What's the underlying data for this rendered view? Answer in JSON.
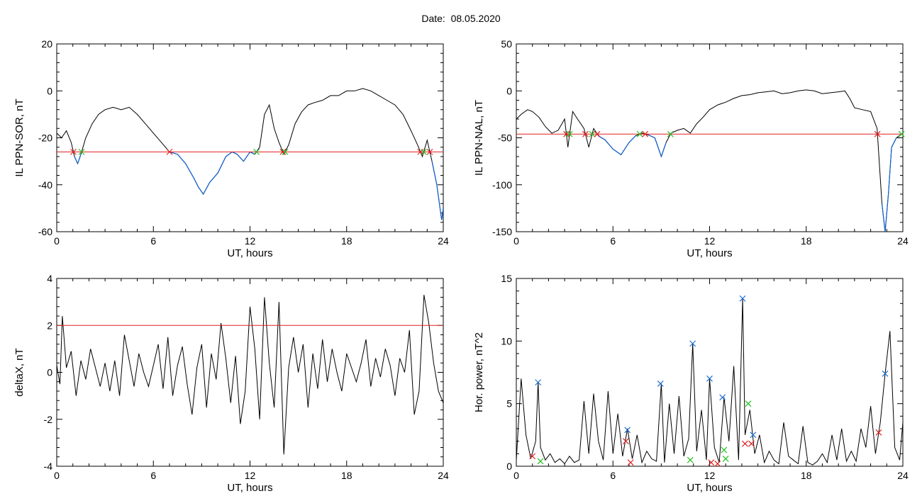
{
  "figure": {
    "date_label": "Date:",
    "date_value": "08.05.2020"
  },
  "colors": {
    "baseline": "#000000",
    "disturbed": "#1060d0",
    "threshold": "#e02020",
    "marker_red": "#e02020",
    "marker_green": "#20c020",
    "marker_blue": "#2070d0"
  },
  "chart_data": [
    {
      "id": "sor",
      "type": "line",
      "title": "",
      "xlabel": "UT, hours",
      "ylabel": "IL PPN-SOR, nT",
      "xlim": [
        0,
        24
      ],
      "ylim": [
        -60,
        20
      ],
      "xticks": [
        0,
        6,
        12,
        18,
        24
      ],
      "yticks": [
        -60,
        -40,
        -20,
        0,
        20
      ],
      "threshold": -26,
      "series": [
        {
          "x": [
            0,
            0.3,
            0.6,
            0.9,
            1.1,
            1.3,
            1.5,
            1.8,
            2.2,
            2.6,
            3.0,
            3.5,
            4.0,
            4.5,
            5.0,
            5.5,
            6.0,
            6.5,
            7.0,
            7.5,
            8.0,
            8.5,
            8.8,
            9.1,
            9.5,
            10.0,
            10.5,
            10.9,
            11.2,
            11.6,
            12.0,
            12.3,
            12.6,
            12.9,
            13.2,
            13.5,
            13.8,
            14.1,
            14.4,
            14.8,
            15.2,
            15.6,
            16.0,
            16.5,
            17.0,
            17.5,
            18.0,
            18.5,
            19.0,
            19.5,
            20.0,
            20.5,
            21.0,
            21.5,
            22.0,
            22.4,
            22.7,
            23.0,
            23.3,
            23.6,
            23.9,
            24.0
          ],
          "y": [
            -18,
            -20,
            -17,
            -22,
            -28,
            -31,
            -27,
            -20,
            -14,
            -10,
            -8,
            -7,
            -8,
            -7,
            -10,
            -14,
            -18,
            -22,
            -26,
            -27,
            -31,
            -37,
            -41,
            -44,
            -39,
            -35,
            -28,
            -26,
            -27,
            -30,
            -26,
            -27,
            -24,
            -10,
            -6,
            -16,
            -22,
            -27,
            -23,
            -14,
            -9,
            -6,
            -5,
            -4,
            -2,
            -2,
            0,
            0,
            1,
            0,
            -2,
            -4,
            -6,
            -10,
            -17,
            -23,
            -28,
            -21,
            -30,
            -40,
            -55,
            -50
          ]
        }
      ]
    },
    {
      "id": "nal",
      "type": "line",
      "title": "",
      "xlabel": "UT, hours",
      "ylabel": "IL PPN-NAL, nT",
      "xlim": [
        0,
        24
      ],
      "ylim": [
        -150,
        50
      ],
      "xticks": [
        0,
        6,
        12,
        18,
        24
      ],
      "yticks": [
        -150,
        -100,
        -50,
        0,
        50
      ],
      "threshold": -46,
      "series": [
        {
          "x": [
            0,
            0.3,
            0.7,
            1.0,
            1.4,
            1.8,
            2.2,
            2.6,
            3.0,
            3.2,
            3.5,
            3.8,
            4.2,
            4.5,
            4.8,
            5.1,
            5.5,
            6.0,
            6.5,
            7.0,
            7.4,
            7.8,
            8.2,
            8.6,
            9.0,
            9.3,
            9.6,
            10.0,
            10.4,
            10.8,
            11.2,
            11.6,
            12.0,
            12.5,
            13.0,
            13.5,
            14.0,
            14.5,
            15.0,
            15.5,
            16.0,
            16.5,
            17.0,
            17.5,
            18.0,
            18.5,
            19.0,
            19.5,
            20.0,
            20.4,
            20.7,
            21.0,
            21.5,
            22.0,
            22.4,
            22.7,
            22.9,
            23.1,
            23.3,
            23.6,
            24.0
          ],
          "y": [
            -30,
            -25,
            -20,
            -22,
            -28,
            -38,
            -45,
            -42,
            -30,
            -60,
            -22,
            -30,
            -40,
            -60,
            -40,
            -48,
            -52,
            -62,
            -68,
            -55,
            -48,
            -45,
            -47,
            -50,
            -70,
            -55,
            -45,
            -42,
            -40,
            -45,
            -35,
            -28,
            -20,
            -15,
            -12,
            -8,
            -5,
            -4,
            -2,
            -1,
            0,
            -3,
            -2,
            0,
            1,
            0,
            -3,
            -2,
            -1,
            0,
            -8,
            -18,
            -20,
            -22,
            -40,
            -120,
            -150,
            -110,
            -60,
            -50,
            -45
          ]
        }
      ]
    },
    {
      "id": "deltax",
      "type": "line",
      "title": "",
      "xlabel": "UT, hours",
      "ylabel": "deltaX, nT",
      "xlim": [
        0,
        24
      ],
      "ylim": [
        -4,
        4
      ],
      "xticks": [
        0,
        6,
        12,
        18,
        24
      ],
      "yticks": [
        -4,
        -2,
        0,
        2,
        4
      ],
      "threshold": 2,
      "series": [
        {
          "x": [
            0,
            0.2,
            0.35,
            0.6,
            0.9,
            1.2,
            1.5,
            1.8,
            2.1,
            2.4,
            2.7,
            3.0,
            3.3,
            3.6,
            3.9,
            4.2,
            4.5,
            4.8,
            5.1,
            5.4,
            5.7,
            6.0,
            6.3,
            6.6,
            6.9,
            7.2,
            7.5,
            7.8,
            8.1,
            8.4,
            8.7,
            9.0,
            9.3,
            9.6,
            9.9,
            10.2,
            10.5,
            10.8,
            11.1,
            11.4,
            11.7,
            12.0,
            12.3,
            12.6,
            12.9,
            13.2,
            13.5,
            13.8,
            14.1,
            14.4,
            14.7,
            15.0,
            15.3,
            15.6,
            15.9,
            16.2,
            16.5,
            16.8,
            17.1,
            17.4,
            17.7,
            18.0,
            18.3,
            18.6,
            18.9,
            19.2,
            19.5,
            19.8,
            20.1,
            20.4,
            20.7,
            21.0,
            21.3,
            21.6,
            21.9,
            22.2,
            22.5,
            22.8,
            23.1,
            23.4,
            23.7,
            24.0
          ],
          "y": [
            0.3,
            -0.5,
            2.4,
            0.2,
            0.9,
            -1.0,
            0.5,
            -0.3,
            1.0,
            0.2,
            -0.6,
            0.4,
            -0.8,
            0.5,
            -1.0,
            1.6,
            0.5,
            -0.6,
            0.8,
            0.0,
            -0.6,
            0.3,
            1.2,
            -0.7,
            1.5,
            -1.0,
            0.3,
            1.1,
            -0.5,
            -1.8,
            0.2,
            1.2,
            -1.5,
            0.8,
            -0.3,
            2.1,
            0.6,
            -1.3,
            0.7,
            -2.2,
            -0.8,
            2.8,
            1.0,
            -2.0,
            3.2,
            0.4,
            -1.5,
            3.0,
            -3.5,
            0.2,
            1.5,
            0.0,
            1.2,
            -1.5,
            0.8,
            -0.7,
            1.4,
            -0.4,
            1.0,
            0.0,
            -0.8,
            0.8,
            0.2,
            -0.4,
            0.4,
            1.4,
            -0.6,
            0.6,
            -0.2,
            1.0,
            0.3,
            -1.0,
            0.6,
            0.0,
            1.8,
            -1.8,
            -0.8,
            3.3,
            2.1,
            0.4,
            -0.8,
            -1.3
          ]
        }
      ]
    },
    {
      "id": "power",
      "type": "line",
      "title": "",
      "xlabel": "UT, hours",
      "ylabel": "Hor. power, nT^2",
      "xlim": [
        0,
        24
      ],
      "ylim": [
        0,
        15
      ],
      "xticks": [
        0,
        6,
        12,
        18,
        24
      ],
      "yticks": [
        0,
        5,
        10,
        15
      ],
      "series": [
        {
          "x": [
            0,
            0.3,
            0.6,
            0.9,
            1.2,
            1.35,
            1.5,
            1.8,
            2.1,
            2.4,
            2.7,
            3.0,
            3.3,
            3.6,
            3.9,
            4.2,
            4.5,
            4.8,
            5.1,
            5.4,
            5.7,
            6.0,
            6.3,
            6.6,
            6.9,
            7.2,
            7.5,
            7.8,
            8.1,
            8.4,
            8.7,
            9.0,
            9.2,
            9.5,
            9.8,
            10.1,
            10.4,
            10.7,
            10.95,
            11.2,
            11.5,
            11.8,
            12.0,
            12.3,
            12.6,
            12.9,
            13.2,
            13.5,
            13.8,
            14.05,
            14.2,
            14.5,
            14.8,
            15.1,
            15.4,
            15.7,
            16.0,
            16.3,
            16.6,
            16.9,
            17.2,
            17.5,
            17.8,
            18.1,
            18.4,
            18.7,
            19.0,
            19.3,
            19.6,
            19.9,
            20.2,
            20.5,
            20.8,
            21.1,
            21.4,
            21.7,
            22.0,
            22.3,
            22.6,
            22.9,
            23.2,
            23.5,
            23.8,
            24.0
          ],
          "y": [
            0.5,
            7.0,
            2.5,
            0.6,
            2.0,
            6.7,
            1.5,
            0.5,
            1.0,
            0.3,
            0.6,
            0.2,
            0.8,
            0.3,
            0.5,
            5.2,
            1.0,
            5.8,
            2.0,
            0.5,
            6.0,
            1.0,
            4.2,
            0.8,
            3.0,
            0.6,
            2.5,
            0.3,
            1.2,
            0.6,
            0.4,
            6.6,
            0.3,
            5.0,
            1.0,
            5.6,
            0.8,
            2.2,
            9.8,
            1.2,
            4.5,
            0.5,
            7.0,
            1.5,
            0.3,
            5.5,
            2.0,
            8.0,
            0.5,
            13.4,
            2.5,
            4.5,
            1.0,
            2.5,
            0.3,
            1.2,
            0.5,
            0.2,
            3.5,
            0.8,
            0.5,
            0.2,
            3.2,
            0.3,
            0.1,
            0.4,
            1.0,
            0.3,
            2.5,
            0.5,
            3.0,
            0.4,
            1.2,
            0.4,
            3.0,
            1.5,
            4.8,
            1.0,
            3.5,
            7.4,
            10.8,
            1.5,
            0.5,
            3.5
          ]
        }
      ],
      "markers": [
        {
          "color": "marker_blue",
          "points": [
            [
              1.35,
              6.7
            ],
            [
              8.95,
              6.6
            ],
            [
              10.95,
              9.8
            ],
            [
              12.0,
              7.0
            ],
            [
              12.8,
              5.5
            ],
            [
              14.05,
              13.4
            ],
            [
              14.7,
              2.5
            ],
            [
              6.9,
              2.9
            ],
            [
              22.9,
              7.4
            ]
          ]
        },
        {
          "color": "marker_red",
          "points": [
            [
              1.0,
              0.8
            ],
            [
              6.8,
              2.0
            ],
            [
              7.1,
              0.3
            ],
            [
              12.1,
              0.3
            ],
            [
              12.5,
              0.2
            ],
            [
              14.2,
              1.8
            ],
            [
              14.6,
              1.8
            ],
            [
              22.5,
              2.7
            ]
          ]
        },
        {
          "color": "marker_green",
          "points": [
            [
              1.5,
              0.4
            ],
            [
              10.8,
              0.5
            ],
            [
              12.9,
              1.3
            ],
            [
              13.0,
              0.6
            ],
            [
              14.4,
              5.0
            ]
          ]
        }
      ]
    }
  ]
}
